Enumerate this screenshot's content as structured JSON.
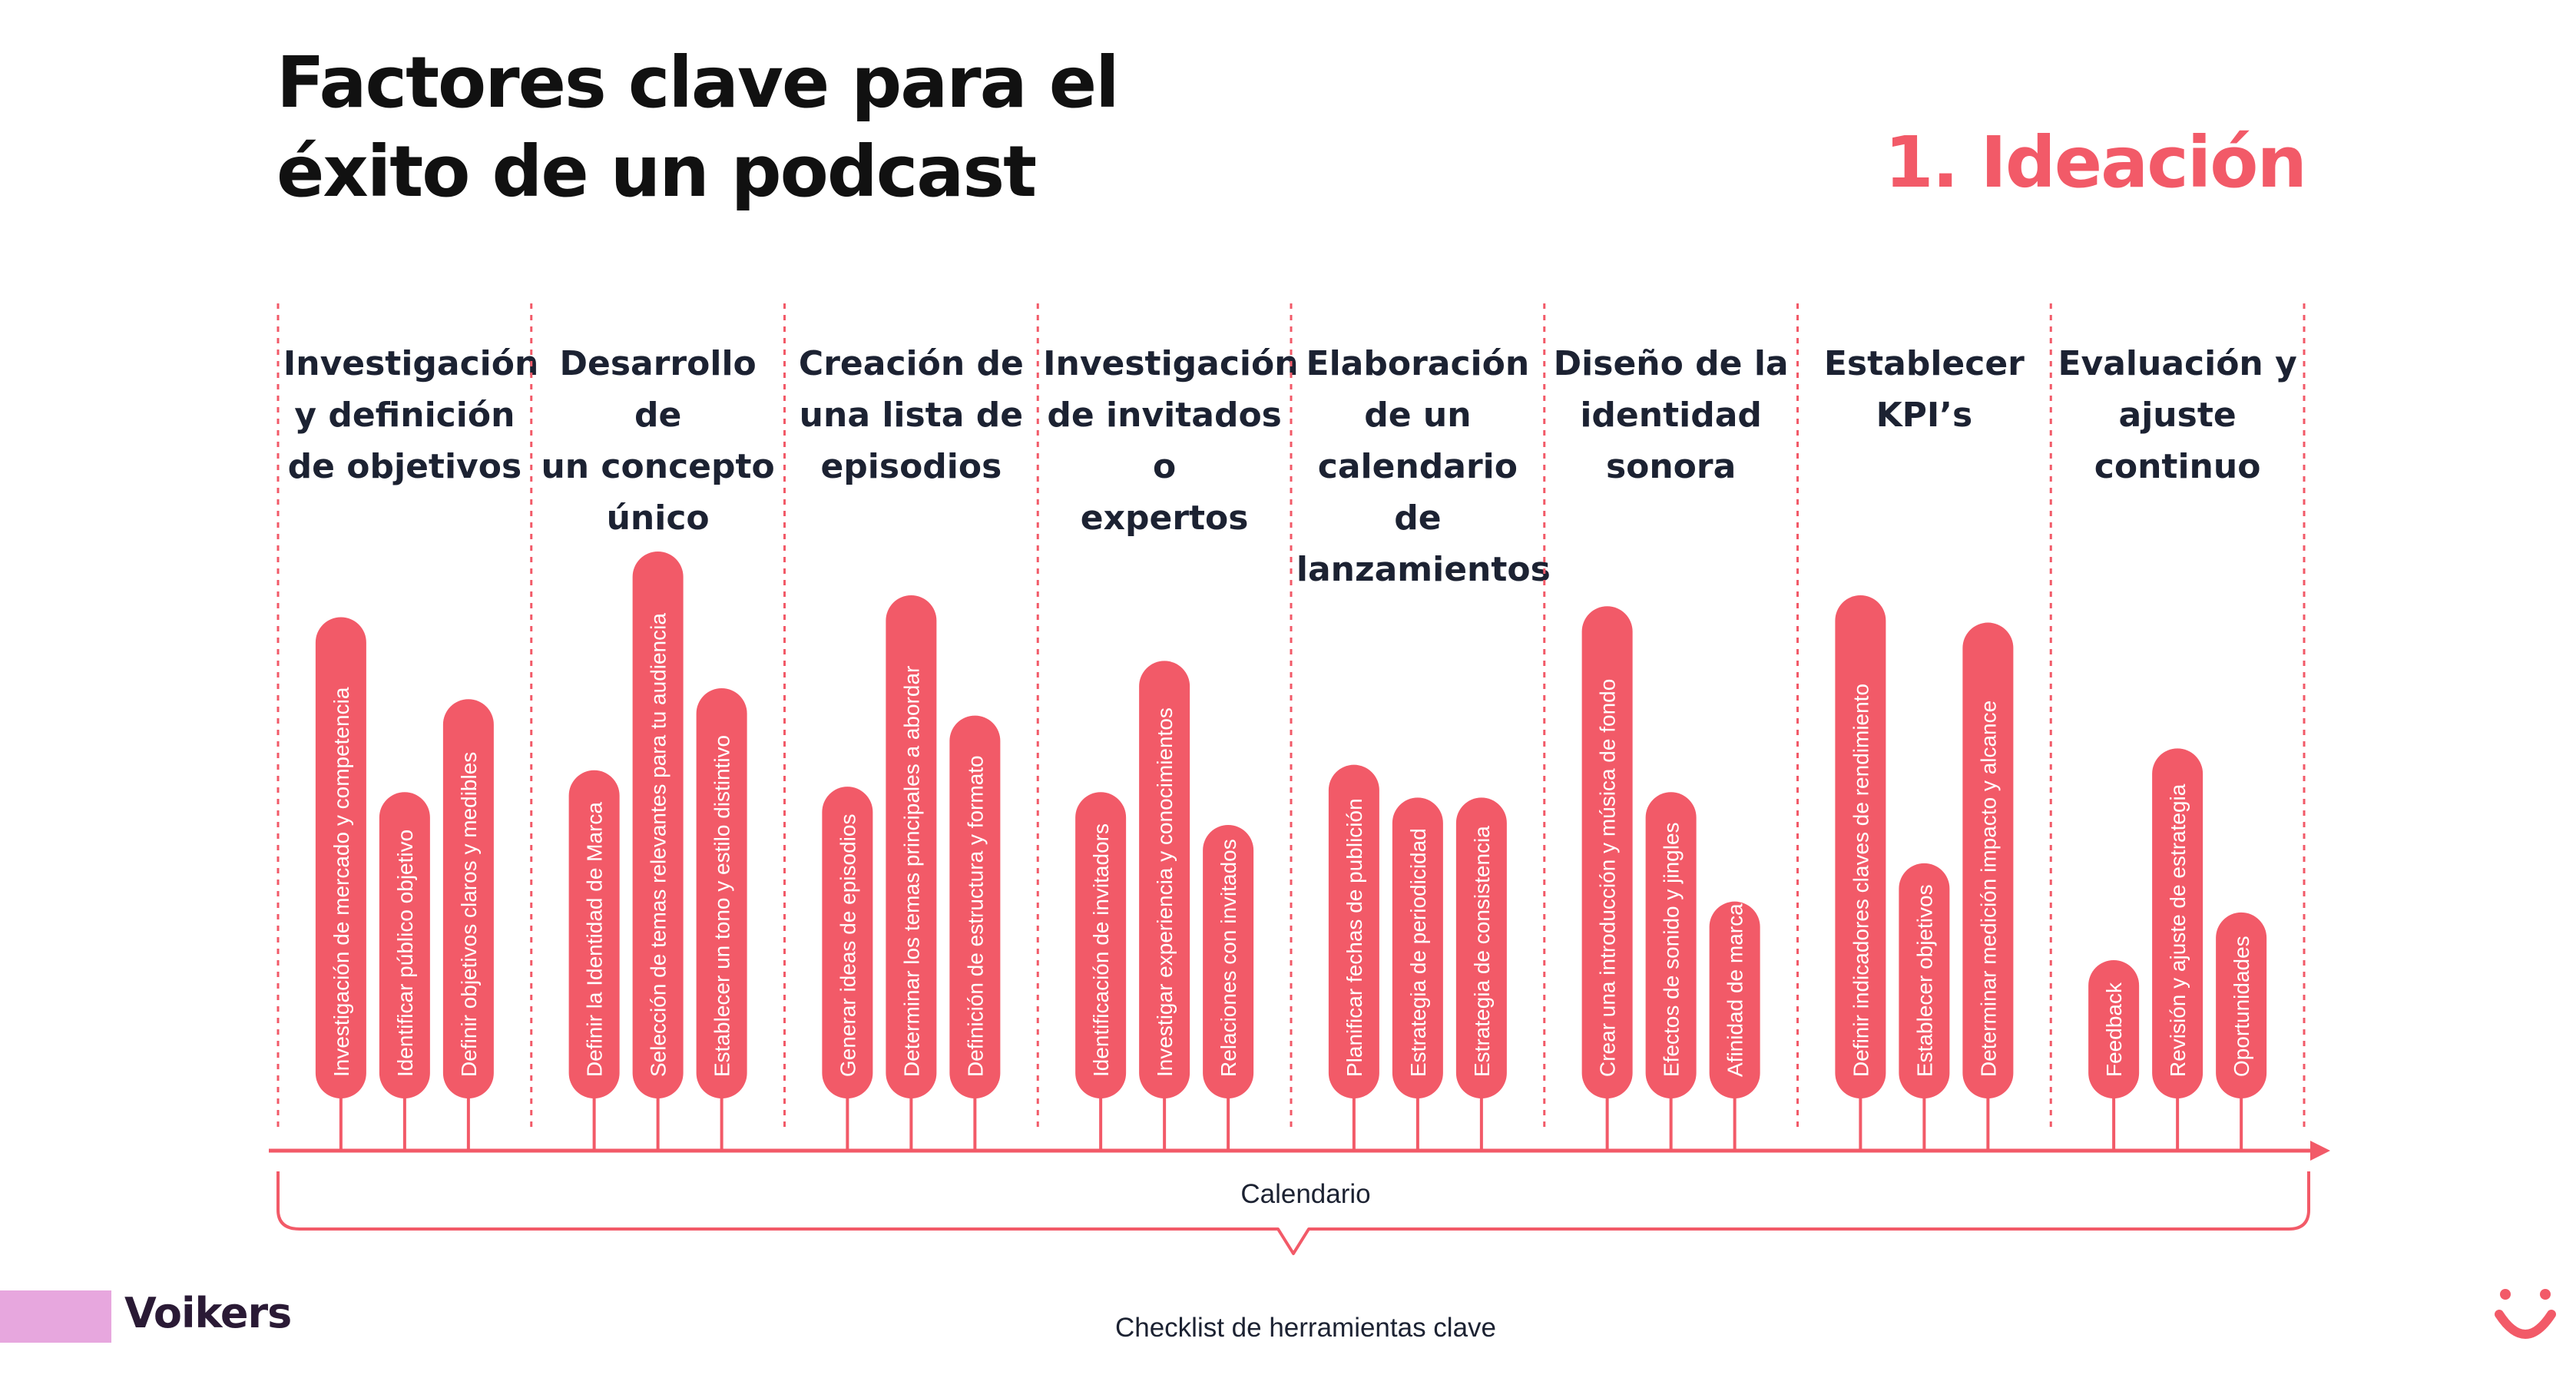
{
  "header": {
    "title_line1": "Factores clave para el",
    "title_line2": "éxito de un podcast",
    "phase": "1. Ideación"
  },
  "columns": [
    {
      "title": [
        "Investigación",
        "y definición",
        "de objetivos"
      ],
      "items": [
        {
          "label": "Investigación de mercado y competencia",
          "level": 0.88
        },
        {
          "label": "Identificar público objetivo",
          "level": 0.56
        },
        {
          "label": "Definir objetivos claros y medibles",
          "level": 0.73
        }
      ]
    },
    {
      "title": [
        "Desarrollo de",
        "un concepto",
        "único"
      ],
      "items": [
        {
          "label": "Definir la Identidad de Marca",
          "level": 0.6
        },
        {
          "label": "Selección de temas relevantes para tu audiencia",
          "level": 1.0
        },
        {
          "label": "Establecer un tono y estilo distintivo",
          "level": 0.75
        }
      ]
    },
    {
      "title": [
        "Creación de",
        "una lista de",
        "episodios"
      ],
      "items": [
        {
          "label": "Generar ideas de episodios",
          "level": 0.57
        },
        {
          "label": "Determinar los temas principales a abordar",
          "level": 0.92
        },
        {
          "label": "Definición de estructura y formato",
          "level": 0.7
        }
      ]
    },
    {
      "title": [
        "Investigación",
        "de invitados o",
        "expertos"
      ],
      "items": [
        {
          "label": "Identificación de invitadors",
          "level": 0.56
        },
        {
          "label": "Investigar experiencia y conocimientos",
          "level": 0.8
        },
        {
          "label": "Relaciones con invitados",
          "level": 0.5
        }
      ]
    },
    {
      "title": [
        "Elaboración",
        "de un",
        "calendario de",
        "lanzamientos"
      ],
      "items": [
        {
          "label": "Planificar fechas de publición",
          "level": 0.61
        },
        {
          "label": "Estrategia de periodicidad",
          "level": 0.55
        },
        {
          "label": "Estrategia de consistencia",
          "level": 0.55
        }
      ]
    },
    {
      "title": [
        "Diseño de la",
        "identidad",
        "sonora"
      ],
      "items": [
        {
          "label": "Crear una introducción y música de fondo",
          "level": 0.9
        },
        {
          "label": "Efectos de sonido y jingles",
          "level": 0.56
        },
        {
          "label": "Afinidad de marca",
          "level": 0.36
        }
      ]
    },
    {
      "title": [
        "Establecer",
        "KPI’s"
      ],
      "items": [
        {
          "label": "Definir indicadores claves de rendimiento",
          "level": 0.92
        },
        {
          "label": "Establecer objetivos",
          "level": 0.43
        },
        {
          "label": "Determinar medición impacto y alcance",
          "level": 0.87
        }
      ]
    },
    {
      "title": [
        "Evaluación y",
        "ajuste",
        "continuo"
      ],
      "items": [
        {
          "label": "Feedback",
          "level": 0.2
        },
        {
          "label": "Revisión y ajuste de estrategia",
          "level": 0.64
        },
        {
          "label": "Oportunidades",
          "level": 0.34
        }
      ]
    }
  ],
  "timeline": {
    "label": "Calendario",
    "checklist": "Checklist de herramientas clave"
  },
  "brand": {
    "name": "Voikers"
  },
  "colors": {
    "accent": "#f25a68",
    "ink": "#1c2232",
    "brand_bar": "#e7a7de"
  }
}
